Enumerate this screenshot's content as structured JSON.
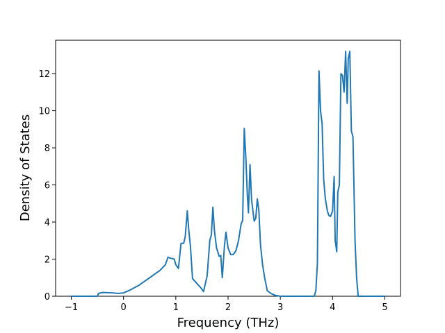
{
  "chart_data": {
    "type": "line",
    "xlabel": "Frequency (THz)",
    "ylabel": "Density of States",
    "xlim": [
      -1.3,
      5.3
    ],
    "ylim": [
      0,
      13.8
    ],
    "xticks": [
      {
        "value": -1,
        "label": "−1"
      },
      0,
      1,
      2,
      3,
      4,
      5
    ],
    "yticks": [
      0,
      2,
      4,
      6,
      8,
      10,
      12
    ],
    "series": [
      {
        "color": "#1f77b4",
        "x": [
          -1,
          -0.5,
          -0.48,
          -0.4,
          -0.2,
          -0.1,
          0,
          0.1,
          0.2,
          0.3,
          0.4,
          0.5,
          0.6,
          0.7,
          0.8,
          0.85,
          0.9,
          0.97,
          1.0,
          1.05,
          1.1,
          1.15,
          1.18,
          1.22,
          1.25,
          1.28,
          1.32,
          1.4,
          1.48,
          1.53,
          1.6,
          1.65,
          1.68,
          1.71,
          1.74,
          1.78,
          1.83,
          1.86,
          1.89,
          1.93,
          1.96,
          2.0,
          2.05,
          2.1,
          2.15,
          2.2,
          2.25,
          2.28,
          2.31,
          2.34,
          2.37,
          2.39,
          2.42,
          2.45,
          2.5,
          2.53,
          2.56,
          2.59,
          2.62,
          2.66,
          2.7,
          2.75,
          2.82,
          2.9,
          3.0,
          3.65,
          3.68,
          3.71,
          3.74,
          3.77,
          3.8,
          3.83,
          3.86,
          3.9,
          3.93,
          3.96,
          4.0,
          4.03,
          4.05,
          4.08,
          4.1,
          4.13,
          4.16,
          4.19,
          4.22,
          4.25,
          4.28,
          4.3,
          4.33,
          4.36,
          4.39,
          4.43,
          4.46,
          4.49,
          5.0
        ],
        "values": [
          0,
          0,
          0.15,
          0.2,
          0.18,
          0.15,
          0.18,
          0.3,
          0.45,
          0.6,
          0.8,
          1.0,
          1.2,
          1.4,
          1.7,
          2.1,
          2.05,
          2.0,
          1.7,
          1.5,
          2.85,
          2.85,
          3.2,
          4.6,
          3.5,
          2.7,
          0.95,
          0.7,
          0.45,
          0.25,
          1.1,
          3.0,
          3.3,
          4.8,
          3.5,
          2.6,
          2.15,
          2.2,
          1.0,
          2.7,
          3.45,
          2.6,
          2.25,
          2.25,
          2.45,
          3.0,
          3.9,
          4.1,
          9.05,
          7.5,
          5.4,
          4.5,
          7.1,
          5.2,
          4.05,
          4.2,
          5.25,
          4.6,
          2.8,
          1.7,
          1.0,
          0.3,
          0.15,
          0.05,
          0,
          0,
          0.3,
          1.8,
          12.15,
          10.0,
          9.3,
          6.3,
          5.3,
          4.6,
          4.35,
          4.3,
          4.6,
          6.45,
          3.0,
          2.4,
          5.6,
          6.0,
          12.0,
          11.9,
          11.0,
          13.2,
          10.4,
          12.8,
          13.2,
          8.9,
          8.6,
          3.0,
          1.0,
          0,
          0
        ]
      }
    ]
  }
}
